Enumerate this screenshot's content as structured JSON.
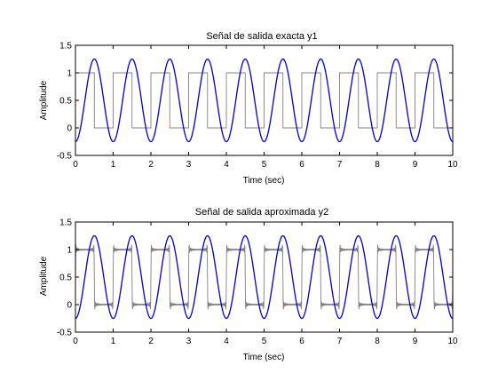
{
  "chart_data": [
    {
      "type": "line",
      "title": "Señal de salida exacta y1",
      "xlabel": "Time (sec)",
      "ylabel": "Amplitude",
      "xlim": [
        0,
        10
      ],
      "ylim": [
        -0.5,
        1.5
      ],
      "xticks": [
        "0",
        "1",
        "2",
        "3",
        "4",
        "5",
        "6",
        "7",
        "8",
        "9",
        "10"
      ],
      "yticks": [
        "-0.5",
        "0",
        "0.5",
        "1",
        "1.5"
      ],
      "grid": false,
      "series": [
        {
          "kind": "square-wave",
          "color": "#808080",
          "period": 1,
          "low": 0,
          "high": 1
        },
        {
          "kind": "sinusoid",
          "color": "#0000cc",
          "period": 1,
          "min": -0.25,
          "max": 1.25
        }
      ]
    },
    {
      "type": "line",
      "title": "Señal de salida aproximada y2",
      "xlabel": "Time (sec)",
      "ylabel": "Amplitude",
      "xlim": [
        0,
        10
      ],
      "ylim": [
        -0.5,
        1.5
      ],
      "xticks": [
        "0",
        "1",
        "2",
        "3",
        "4",
        "5",
        "6",
        "7",
        "8",
        "9",
        "10"
      ],
      "yticks": [
        "-0.5",
        "0",
        "0.5",
        "1",
        "1.5"
      ],
      "grid": false,
      "series": [
        {
          "kind": "square-wave-approximation",
          "color": "#808080",
          "period": 1,
          "low": 0,
          "high": 1,
          "ripple": 0.1
        },
        {
          "kind": "sinusoid",
          "color": "#0000cc",
          "period": 1,
          "min": -0.25,
          "max": 1.25
        }
      ]
    }
  ]
}
